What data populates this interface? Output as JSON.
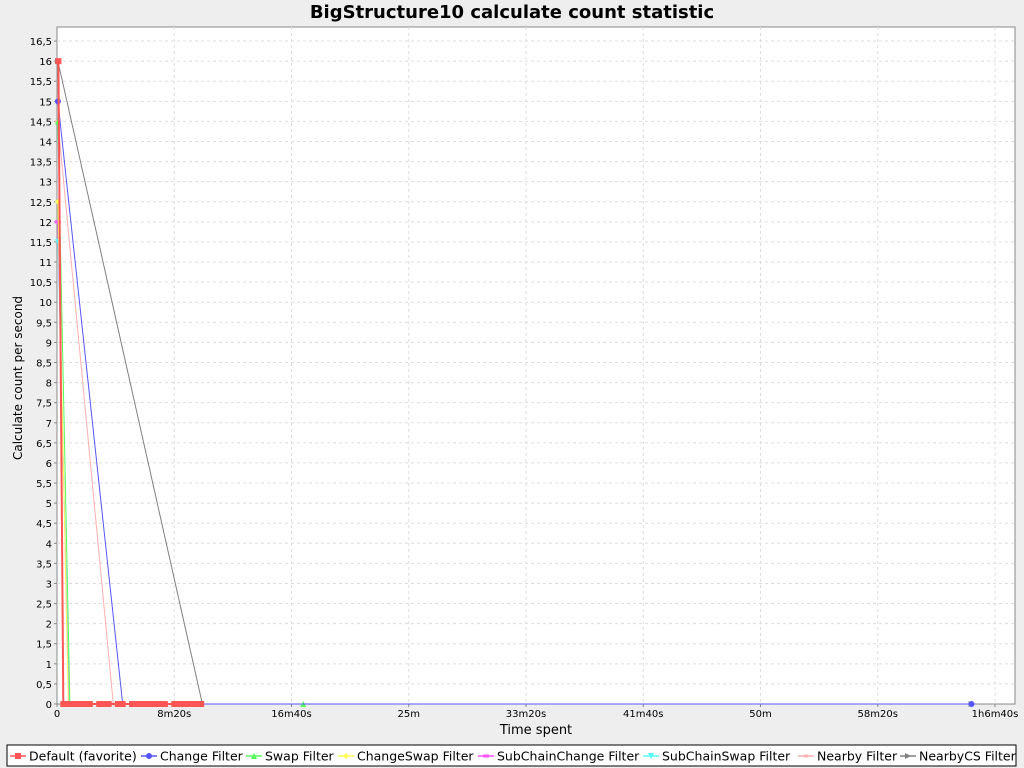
{
  "chart_data": {
    "type": "line",
    "title": "BigStructure10 calculate count statistic",
    "xlabel": "Time spent",
    "ylabel": "Calculate count per second",
    "x_unit": "seconds",
    "xlim": [
      0,
      4000
    ],
    "ylim": [
      0,
      16.85
    ],
    "x_ticks": [
      {
        "value": 0,
        "label": "0"
      },
      {
        "value": 500,
        "label": "8m20s"
      },
      {
        "value": 1000,
        "label": "16m40s"
      },
      {
        "value": 1500,
        "label": "25m"
      },
      {
        "value": 2000,
        "label": "33m20s"
      },
      {
        "value": 2500,
        "label": "41m40s"
      },
      {
        "value": 3000,
        "label": "50m"
      },
      {
        "value": 3500,
        "label": "58m20s"
      },
      {
        "value": 4000,
        "label": "1h6m40s"
      }
    ],
    "y_ticks": [
      {
        "value": 0,
        "label": "0"
      },
      {
        "value": 0.5,
        "label": "0,5"
      },
      {
        "value": 1,
        "label": "1"
      },
      {
        "value": 1.5,
        "label": "1,5"
      },
      {
        "value": 2,
        "label": "2"
      },
      {
        "value": 2.5,
        "label": "2,5"
      },
      {
        "value": 3,
        "label": "3"
      },
      {
        "value": 3.5,
        "label": "3,5"
      },
      {
        "value": 4,
        "label": "4"
      },
      {
        "value": 4.5,
        "label": "4,5"
      },
      {
        "value": 5,
        "label": "5"
      },
      {
        "value": 5.5,
        "label": "5,5"
      },
      {
        "value": 6,
        "label": "6"
      },
      {
        "value": 6.5,
        "label": "6,5"
      },
      {
        "value": 7,
        "label": "7"
      },
      {
        "value": 7.5,
        "label": "7,5"
      },
      {
        "value": 8,
        "label": "8"
      },
      {
        "value": 8.5,
        "label": "8,5"
      },
      {
        "value": 9,
        "label": "9"
      },
      {
        "value": 9.5,
        "label": "9,5"
      },
      {
        "value": 10,
        "label": "10"
      },
      {
        "value": 10.5,
        "label": "10,5"
      },
      {
        "value": 11,
        "label": "11"
      },
      {
        "value": 11.5,
        "label": "11,5"
      },
      {
        "value": 12,
        "label": "12"
      },
      {
        "value": 12.5,
        "label": "12,5"
      },
      {
        "value": 13,
        "label": "13"
      },
      {
        "value": 13.5,
        "label": "13,5"
      },
      {
        "value": 14,
        "label": "14"
      },
      {
        "value": 14.5,
        "label": "14,5"
      },
      {
        "value": 15,
        "label": "15"
      },
      {
        "value": 15.5,
        "label": "15,5"
      },
      {
        "value": 16,
        "label": "16"
      },
      {
        "value": 16.5,
        "label": "16,5"
      }
    ],
    "grid": true,
    "legend_position": "bottom",
    "series": [
      {
        "name": "Default (favorite)",
        "color": "#ff5555",
        "marker": "square",
        "points": [
          [
            6,
            16
          ],
          [
            27,
            0
          ],
          [
            40,
            0
          ],
          [
            60,
            0
          ],
          [
            80,
            0
          ],
          [
            100,
            0
          ],
          [
            120,
            0
          ],
          [
            140,
            0
          ],
          [
            180,
            0
          ],
          [
            200,
            0
          ],
          [
            220,
            0
          ],
          [
            260,
            0
          ],
          [
            280,
            0
          ],
          [
            320,
            0
          ],
          [
            340,
            0
          ],
          [
            360,
            0
          ],
          [
            380,
            0
          ],
          [
            400,
            0
          ],
          [
            420,
            0
          ],
          [
            440,
            0
          ],
          [
            460,
            0
          ],
          [
            500,
            0
          ],
          [
            520,
            0
          ],
          [
            540,
            0
          ],
          [
            560,
            0
          ],
          [
            580,
            0
          ],
          [
            600,
            0
          ],
          [
            615,
            0
          ]
        ]
      },
      {
        "name": "Change Filter",
        "color": "#5555ff",
        "marker": "circle",
        "points": [
          [
            4,
            15
          ],
          [
            280,
            0
          ],
          [
            3900,
            0
          ]
        ]
      },
      {
        "name": "Swap Filter",
        "color": "#55ff55",
        "marker": "triangle-up",
        "points": [
          [
            4,
            14.5
          ],
          [
            55,
            0
          ],
          [
            1050,
            0
          ]
        ]
      },
      {
        "name": "ChangeSwap Filter",
        "color": "#ffff55",
        "marker": "diamond",
        "points": [
          [
            4,
            12.5
          ],
          [
            48,
            0
          ]
        ]
      },
      {
        "name": "SubChainChange Filter",
        "color": "#ff55ff",
        "marker": "rect",
        "points": [
          [
            4,
            12
          ],
          [
            50,
            0
          ]
        ]
      },
      {
        "name": "SubChainSwap Filter",
        "color": "#55ffff",
        "marker": "triangle-down",
        "points": [
          [
            4,
            11.5
          ],
          [
            52,
            0
          ]
        ]
      },
      {
        "name": "Nearby Filter",
        "color": "#ffafaf",
        "marker": "ellipse",
        "points": [
          [
            4,
            14.5
          ],
          [
            240,
            0
          ]
        ]
      },
      {
        "name": "NearbyCS Filter",
        "color": "#808080",
        "marker": "triangle-right",
        "points": [
          [
            4,
            16
          ],
          [
            620,
            0
          ],
          [
            3900,
            0
          ]
        ]
      }
    ]
  }
}
